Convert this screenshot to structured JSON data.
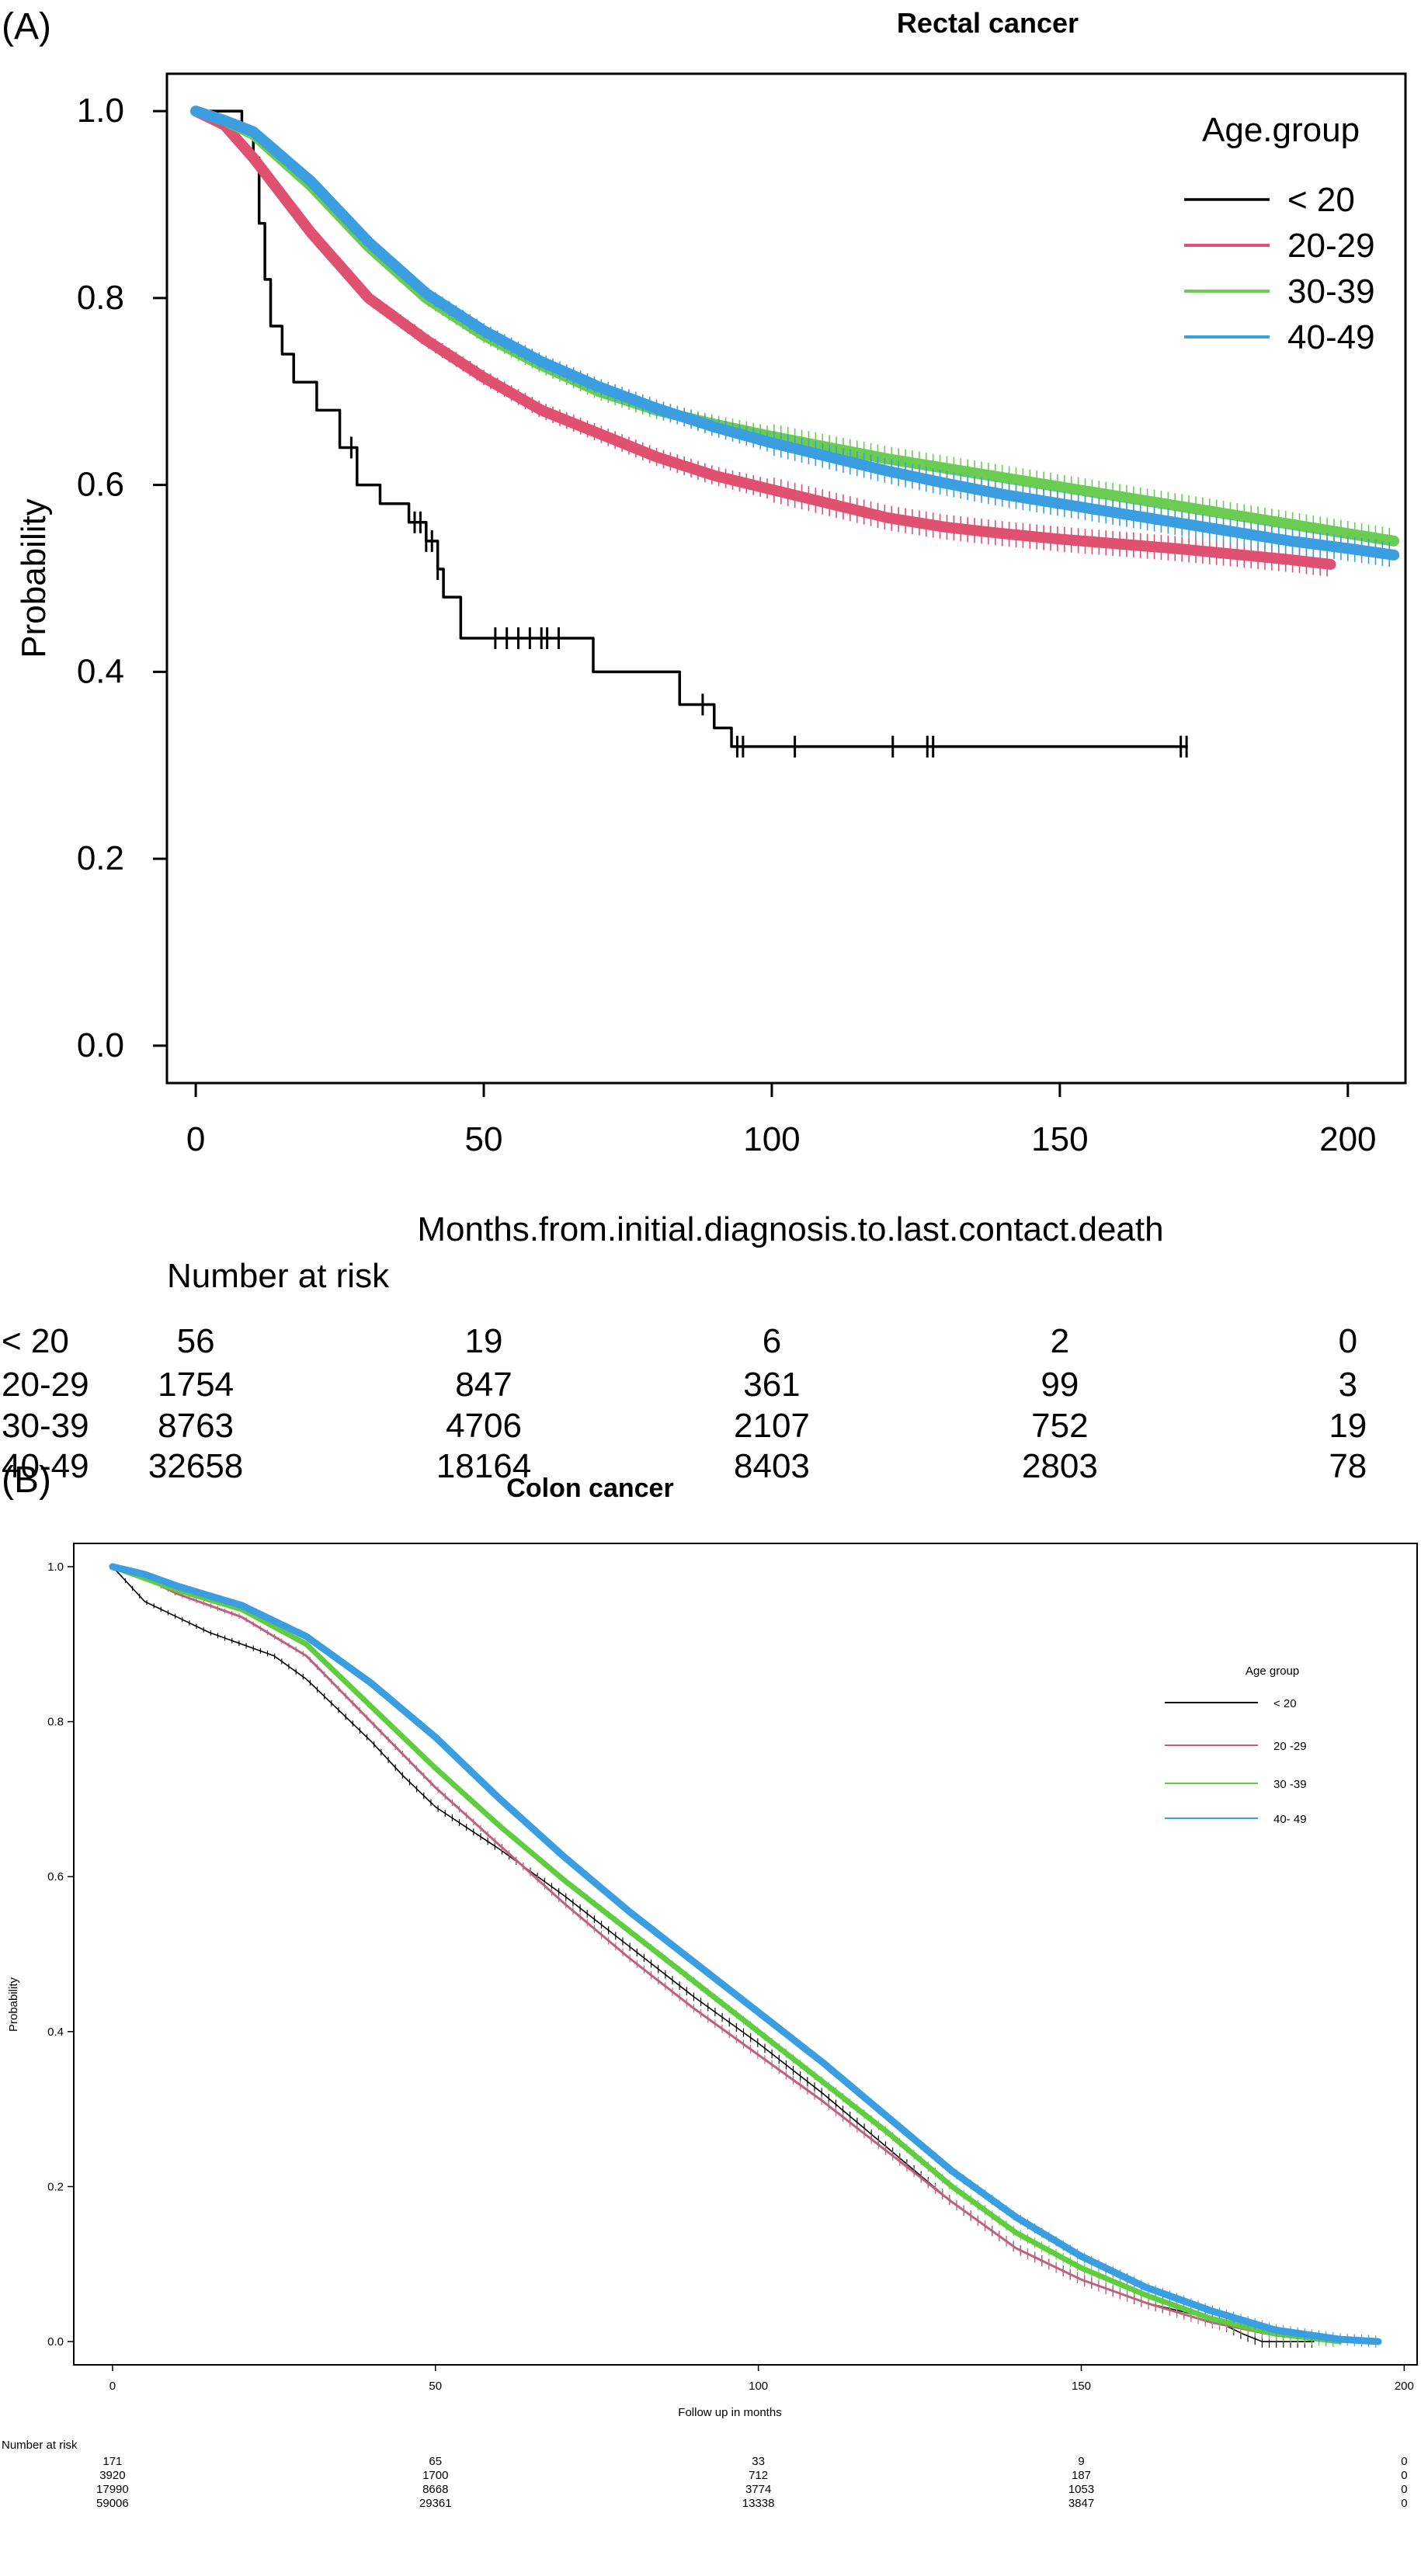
{
  "panels": [
    {
      "label": "(A)",
      "title": "Rectal cancer"
    },
    {
      "label": "(B)",
      "title": "Colon cancer"
    }
  ],
  "chart_data": [
    {
      "type": "line",
      "subtype": "kaplan-meier step",
      "title": "Rectal cancer",
      "xlabel": "Months.from.initial.diagnosis.to.last.contact.death",
      "ylabel": "Probability",
      "xlim": [
        -5,
        210
      ],
      "ylim": [
        -0.04,
        1.04
      ],
      "xticks": [
        0,
        50,
        100,
        150,
        200
      ],
      "yticks": [
        0.0,
        0.2,
        0.4,
        0.6,
        0.8,
        1.0
      ],
      "xtick_labels": [
        "0",
        "50",
        "100",
        "150",
        "200"
      ],
      "ytick_labels": [
        "0.0",
        "0.2",
        "0.4",
        "0.6",
        "0.8",
        "1.0"
      ],
      "grid": false,
      "legend": {
        "title": "Age.group",
        "position": "top-right",
        "entries": [
          "< 20",
          "20-29",
          "30-39",
          "40-49"
        ]
      },
      "series": [
        {
          "name": "< 20",
          "color": "#000000",
          "line_width": 3.5,
          "step": true,
          "x": [
            0,
            8,
            10,
            11,
            12,
            13,
            15,
            17,
            21,
            25,
            28,
            32,
            37,
            40,
            42,
            43,
            46,
            60,
            69,
            84,
            90,
            93,
            172
          ],
          "y": [
            1.0,
            0.98,
            0.95,
            0.88,
            0.82,
            0.77,
            0.74,
            0.71,
            0.68,
            0.64,
            0.6,
            0.58,
            0.56,
            0.54,
            0.51,
            0.48,
            0.436,
            0.436,
            0.4,
            0.365,
            0.34,
            0.32,
            0.32
          ],
          "censor_marks_x": [
            27,
            38,
            39,
            40,
            41,
            42,
            52,
            54,
            56,
            58,
            60,
            61,
            63,
            88,
            94,
            95,
            104,
            121,
            127,
            128,
            171,
            172
          ]
        },
        {
          "name": "20-29",
          "color": "#e05070",
          "line_width": 14,
          "censor_band": true,
          "x": [
            0,
            5,
            10,
            20,
            30,
            40,
            50,
            60,
            70,
            80,
            90,
            100,
            110,
            120,
            130,
            140,
            150,
            160,
            170,
            180,
            190,
            197
          ],
          "y": [
            1.0,
            0.985,
            0.95,
            0.87,
            0.8,
            0.755,
            0.715,
            0.68,
            0.655,
            0.63,
            0.61,
            0.595,
            0.58,
            0.565,
            0.555,
            0.548,
            0.542,
            0.537,
            0.532,
            0.526,
            0.52,
            0.515
          ]
        },
        {
          "name": "30-39",
          "color": "#6acc50",
          "line_width": 14,
          "censor_band": true,
          "x": [
            0,
            5,
            10,
            20,
            30,
            40,
            50,
            60,
            70,
            80,
            90,
            100,
            110,
            120,
            130,
            140,
            150,
            160,
            170,
            180,
            190,
            200,
            208
          ],
          "y": [
            1.0,
            0.99,
            0.975,
            0.92,
            0.855,
            0.8,
            0.76,
            0.728,
            0.7,
            0.68,
            0.665,
            0.652,
            0.64,
            0.628,
            0.618,
            0.608,
            0.598,
            0.588,
            0.578,
            0.568,
            0.558,
            0.548,
            0.54
          ]
        },
        {
          "name": "40-49",
          "color": "#3a9ee0",
          "line_width": 14,
          "censor_band": true,
          "x": [
            0,
            5,
            10,
            20,
            30,
            40,
            50,
            60,
            70,
            80,
            90,
            100,
            110,
            120,
            130,
            140,
            150,
            160,
            170,
            180,
            190,
            200,
            208
          ],
          "y": [
            1.0,
            0.99,
            0.978,
            0.925,
            0.86,
            0.805,
            0.765,
            0.732,
            0.705,
            0.682,
            0.662,
            0.645,
            0.63,
            0.615,
            0.602,
            0.59,
            0.58,
            0.57,
            0.56,
            0.55,
            0.54,
            0.532,
            0.525
          ]
        }
      ],
      "risk_table": {
        "title": "Number at risk",
        "times": [
          0,
          50,
          100,
          150,
          200
        ],
        "rows": [
          {
            "group": "< 20",
            "values": [
              "56",
              "19",
              "6",
              "2",
              "0"
            ]
          },
          {
            "group": "20-29",
            "values": [
              "1754",
              "847",
              "361",
              "99",
              "3"
            ]
          },
          {
            "group": "30-39",
            "values": [
              "8763",
              "4706",
              "2107",
              "752",
              "19"
            ]
          },
          {
            "group": "40-49",
            "values": [
              "32658",
              "18164",
              "8403",
              "2803",
              "78"
            ]
          }
        ]
      }
    },
    {
      "type": "line",
      "subtype": "kaplan-meier step",
      "title": "Colon cancer",
      "xlabel": "Follow up in months",
      "ylabel": "Probability",
      "xlim": [
        -6,
        202
      ],
      "ylim": [
        -0.03,
        1.03
      ],
      "xticks": [
        0,
        50,
        100,
        150,
        200
      ],
      "yticks": [
        0.0,
        0.2,
        0.4,
        0.6,
        0.8,
        1.0
      ],
      "xtick_labels": [
        "0",
        "50",
        "100",
        "150",
        "200"
      ],
      "ytick_labels": [
        "0.0",
        "0.2",
        "0.4",
        "0.6",
        "0.8",
        "1.0"
      ],
      "grid": false,
      "legend": {
        "title": "Age group",
        "position": "top-right",
        "entries": [
          "< 20",
          "20 -29",
          "30 -39",
          "40- 49"
        ]
      },
      "series": [
        {
          "name": "< 20",
          "color": "#000000",
          "line_width": 1.6,
          "censor_band": true,
          "x": [
            0,
            5,
            10,
            15,
            20,
            25,
            30,
            35,
            40,
            45,
            50,
            60,
            70,
            80,
            90,
            100,
            110,
            120,
            130,
            140,
            150,
            160,
            170,
            175,
            178,
            186
          ],
          "y": [
            1.0,
            0.955,
            0.935,
            0.915,
            0.9,
            0.885,
            0.855,
            0.815,
            0.775,
            0.73,
            0.69,
            0.635,
            0.575,
            0.51,
            0.445,
            0.385,
            0.32,
            0.25,
            0.18,
            0.12,
            0.08,
            0.05,
            0.03,
            0.01,
            0.0,
            0.0
          ]
        },
        {
          "name": "20 -29",
          "color": "#c06080",
          "line_width": 3,
          "censor_band": true,
          "x": [
            0,
            5,
            10,
            20,
            30,
            40,
            50,
            60,
            70,
            80,
            90,
            100,
            110,
            120,
            130,
            140,
            150,
            160,
            170,
            180,
            190
          ],
          "y": [
            1.0,
            0.985,
            0.965,
            0.935,
            0.885,
            0.8,
            0.715,
            0.64,
            0.565,
            0.495,
            0.43,
            0.37,
            0.31,
            0.245,
            0.18,
            0.12,
            0.08,
            0.05,
            0.025,
            0.008,
            0.0
          ]
        },
        {
          "name": "30 -39",
          "color": "#60cc40",
          "line_width": 7,
          "censor_band": true,
          "x": [
            0,
            5,
            10,
            20,
            30,
            40,
            50,
            60,
            70,
            80,
            90,
            100,
            110,
            120,
            130,
            140,
            150,
            160,
            170,
            180,
            190
          ],
          "y": [
            1.0,
            0.985,
            0.97,
            0.945,
            0.9,
            0.82,
            0.74,
            0.665,
            0.595,
            0.53,
            0.465,
            0.4,
            0.335,
            0.27,
            0.2,
            0.14,
            0.095,
            0.06,
            0.03,
            0.01,
            0.0
          ]
        },
        {
          "name": "40- 49",
          "color": "#3a9ee0",
          "line_width": 9,
          "censor_band": true,
          "x": [
            0,
            5,
            10,
            20,
            30,
            40,
            50,
            60,
            70,
            80,
            90,
            100,
            110,
            120,
            130,
            140,
            150,
            160,
            170,
            180,
            190,
            196
          ],
          "y": [
            1.0,
            0.99,
            0.975,
            0.95,
            0.91,
            0.85,
            0.78,
            0.7,
            0.625,
            0.555,
            0.49,
            0.425,
            0.36,
            0.29,
            0.22,
            0.16,
            0.11,
            0.07,
            0.04,
            0.015,
            0.003,
            0.0
          ]
        }
      ],
      "risk_table": {
        "title": "Number at risk",
        "times": [
          0,
          50,
          100,
          150,
          200
        ],
        "rows": [
          {
            "group": "",
            "values": [
              "171",
              "65",
              "33",
              "9",
              "0"
            ]
          },
          {
            "group": "",
            "values": [
              "3920",
              "1700",
              "712",
              "187",
              "0"
            ]
          },
          {
            "group": "",
            "values": [
              "17990",
              "8668",
              "3774",
              "1053",
              "0"
            ]
          },
          {
            "group": "",
            "values": [
              "59006",
              "29361",
              "13338",
              "3847",
              "0"
            ]
          }
        ]
      }
    }
  ]
}
